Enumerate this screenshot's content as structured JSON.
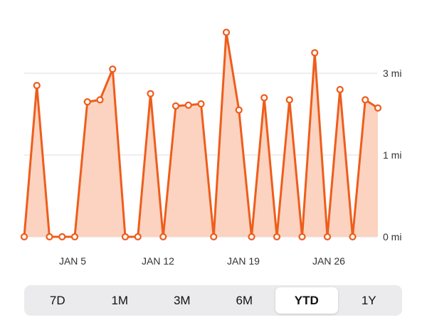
{
  "colors": {
    "line": "#ee5d1c",
    "fill": "#fcd3c0",
    "point_fill": "#ffffff"
  },
  "range_selector": {
    "options": [
      "7D",
      "1M",
      "3M",
      "6M",
      "YTD",
      "1Y"
    ],
    "selected": "YTD"
  },
  "chart_data": {
    "type": "area",
    "x_tick_labels": [
      "JAN 5",
      "JAN 12",
      "JAN 19",
      "JAN 26"
    ],
    "y_tick_labels": [
      "0 mi",
      "1 mi",
      "3 mi"
    ],
    "y_ticks": [
      0,
      1,
      3
    ],
    "grid": true,
    "series": [
      {
        "values": [
          0,
          2.7,
          0,
          0,
          0,
          2.3,
          2.35,
          3.1,
          0,
          0,
          2.5,
          0,
          2.2,
          2.22,
          2.25,
          0,
          4.0,
          2.1,
          0,
          2.4,
          0,
          2.35,
          0,
          3.5,
          0,
          2.6,
          0,
          2.35,
          2.15
        ]
      }
    ]
  }
}
